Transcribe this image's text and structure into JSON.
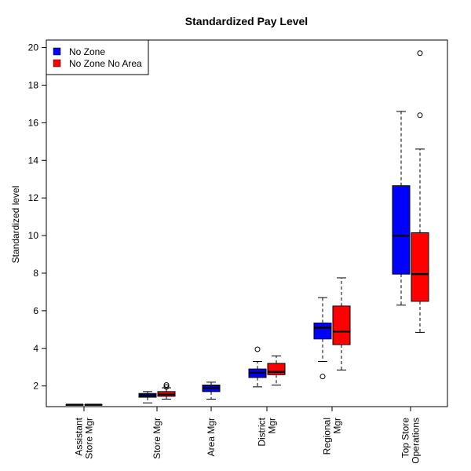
{
  "chart_data": {
    "type": "box",
    "title": "Standardized Pay Level",
    "ylabel": "Standardized level",
    "xlabel": "",
    "ylim": [
      0.9,
      20.4
    ],
    "yticks": [
      2,
      4,
      6,
      8,
      10,
      12,
      14,
      16,
      18,
      20
    ],
    "categories": [
      [
        "Assistant",
        "Store Mgr"
      ],
      [
        "Store Mgr"
      ],
      [
        "Area Mgr"
      ],
      [
        "District",
        "Mgr"
      ],
      [
        "Regional",
        "Mgr"
      ],
      [
        "Top Store",
        "Operations"
      ]
    ],
    "legend": {
      "position": "top-left",
      "entries": [
        {
          "label": "No Zone",
          "color": "#0000ff"
        },
        {
          "label": "No Zone No Area",
          "color": "#ff0000"
        }
      ]
    },
    "series": [
      {
        "name": "No Zone",
        "color": "#0000ff",
        "boxes": [
          {
            "category": 0,
            "whisker_low": 1.0,
            "q1": 1.0,
            "median": 1.0,
            "q3": 1.0,
            "whisker_high": 1.0,
            "outliers": []
          },
          {
            "category": 1,
            "whisker_low": 1.1,
            "q1": 1.4,
            "median": 1.5,
            "q3": 1.6,
            "whisker_high": 1.7,
            "outliers": []
          },
          {
            "category": 2,
            "whisker_low": 1.3,
            "q1": 1.7,
            "median": 1.9,
            "q3": 2.05,
            "whisker_high": 2.2,
            "outliers": []
          },
          {
            "category": 3,
            "whisker_low": 1.95,
            "q1": 2.45,
            "median": 2.7,
            "q3": 2.9,
            "whisker_high": 3.3,
            "outliers": [
              3.95
            ]
          },
          {
            "category": 4,
            "whisker_low": 3.3,
            "q1": 4.5,
            "median": 5.1,
            "q3": 5.35,
            "whisker_high": 6.7,
            "outliers": [
              2.5
            ]
          },
          {
            "category": 5,
            "whisker_low": 6.3,
            "q1": 7.95,
            "median": 10.0,
            "q3": 12.65,
            "whisker_high": 16.6,
            "outliers": []
          }
        ]
      },
      {
        "name": "No Zone No Area",
        "color": "#ff0000",
        "boxes": [
          {
            "category": 0,
            "whisker_low": 1.0,
            "q1": 1.0,
            "median": 1.0,
            "q3": 1.0,
            "whisker_high": 1.0,
            "outliers": []
          },
          {
            "category": 1,
            "whisker_low": 1.3,
            "q1": 1.45,
            "median": 1.55,
            "q3": 1.7,
            "whisker_high": 1.9,
            "outliers": [
              1.95,
              2.05
            ]
          },
          {
            "category": 3,
            "whisker_low": 2.05,
            "q1": 2.6,
            "median": 2.75,
            "q3": 3.2,
            "whisker_high": 3.6,
            "outliers": []
          },
          {
            "category": 4,
            "whisker_low": 2.85,
            "q1": 4.2,
            "median": 4.9,
            "q3": 6.25,
            "whisker_high": 7.75,
            "outliers": []
          },
          {
            "category": 5,
            "whisker_low": 4.85,
            "q1": 6.5,
            "median": 7.95,
            "q3": 10.15,
            "whisker_high": 14.6,
            "outliers": [
              16.4,
              19.7
            ]
          }
        ]
      }
    ]
  }
}
